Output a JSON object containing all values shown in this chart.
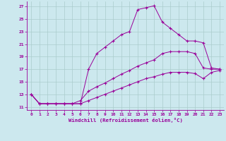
{
  "xlabel": "Windchill (Refroidissement éolien,°C)",
  "bg_color": "#cce8ee",
  "grid_color": "#aacccc",
  "line_color": "#990099",
  "x_ticks": [
    0,
    1,
    2,
    3,
    4,
    5,
    6,
    7,
    8,
    9,
    10,
    11,
    12,
    13,
    14,
    15,
    16,
    17,
    18,
    19,
    20,
    21,
    22,
    23
  ],
  "y_ticks": [
    11,
    13,
    15,
    17,
    19,
    21,
    23,
    25,
    27
  ],
  "xlim": [
    -0.5,
    23.5
  ],
  "ylim": [
    10.5,
    27.8
  ],
  "line1_x": [
    0,
    1,
    2,
    3,
    4,
    5,
    6,
    7,
    8,
    9,
    10,
    11,
    12,
    13,
    14,
    15,
    16,
    17,
    18,
    19,
    20,
    21,
    22,
    23
  ],
  "line1_y": [
    13,
    11.5,
    11.5,
    11.5,
    11.5,
    11.5,
    11.5,
    17,
    19.5,
    20.5,
    21.5,
    22.5,
    23.0,
    26.5,
    26.8,
    27.1,
    24.5,
    23.5,
    22.5,
    21.5,
    21.5,
    21.2,
    17.2,
    17.0
  ],
  "line2_x": [
    0,
    1,
    2,
    3,
    4,
    5,
    6,
    7,
    8,
    9,
    10,
    11,
    12,
    13,
    14,
    15,
    16,
    17,
    18,
    19,
    20,
    21,
    22,
    23
  ],
  "line2_y": [
    13,
    11.5,
    11.5,
    11.5,
    11.5,
    11.5,
    12.0,
    13.5,
    14.2,
    14.8,
    15.5,
    16.2,
    16.8,
    17.5,
    18.0,
    18.5,
    19.5,
    19.8,
    19.8,
    19.8,
    19.5,
    17.2,
    17.0,
    17.0
  ],
  "line3_x": [
    0,
    1,
    2,
    3,
    4,
    5,
    6,
    7,
    8,
    9,
    10,
    11,
    12,
    13,
    14,
    15,
    16,
    17,
    18,
    19,
    20,
    21,
    22,
    23
  ],
  "line3_y": [
    13,
    11.5,
    11.5,
    11.5,
    11.5,
    11.5,
    11.5,
    12.0,
    12.5,
    13.0,
    13.5,
    14.0,
    14.5,
    15.0,
    15.5,
    15.8,
    16.2,
    16.5,
    16.5,
    16.5,
    16.3,
    15.5,
    16.5,
    16.8
  ]
}
